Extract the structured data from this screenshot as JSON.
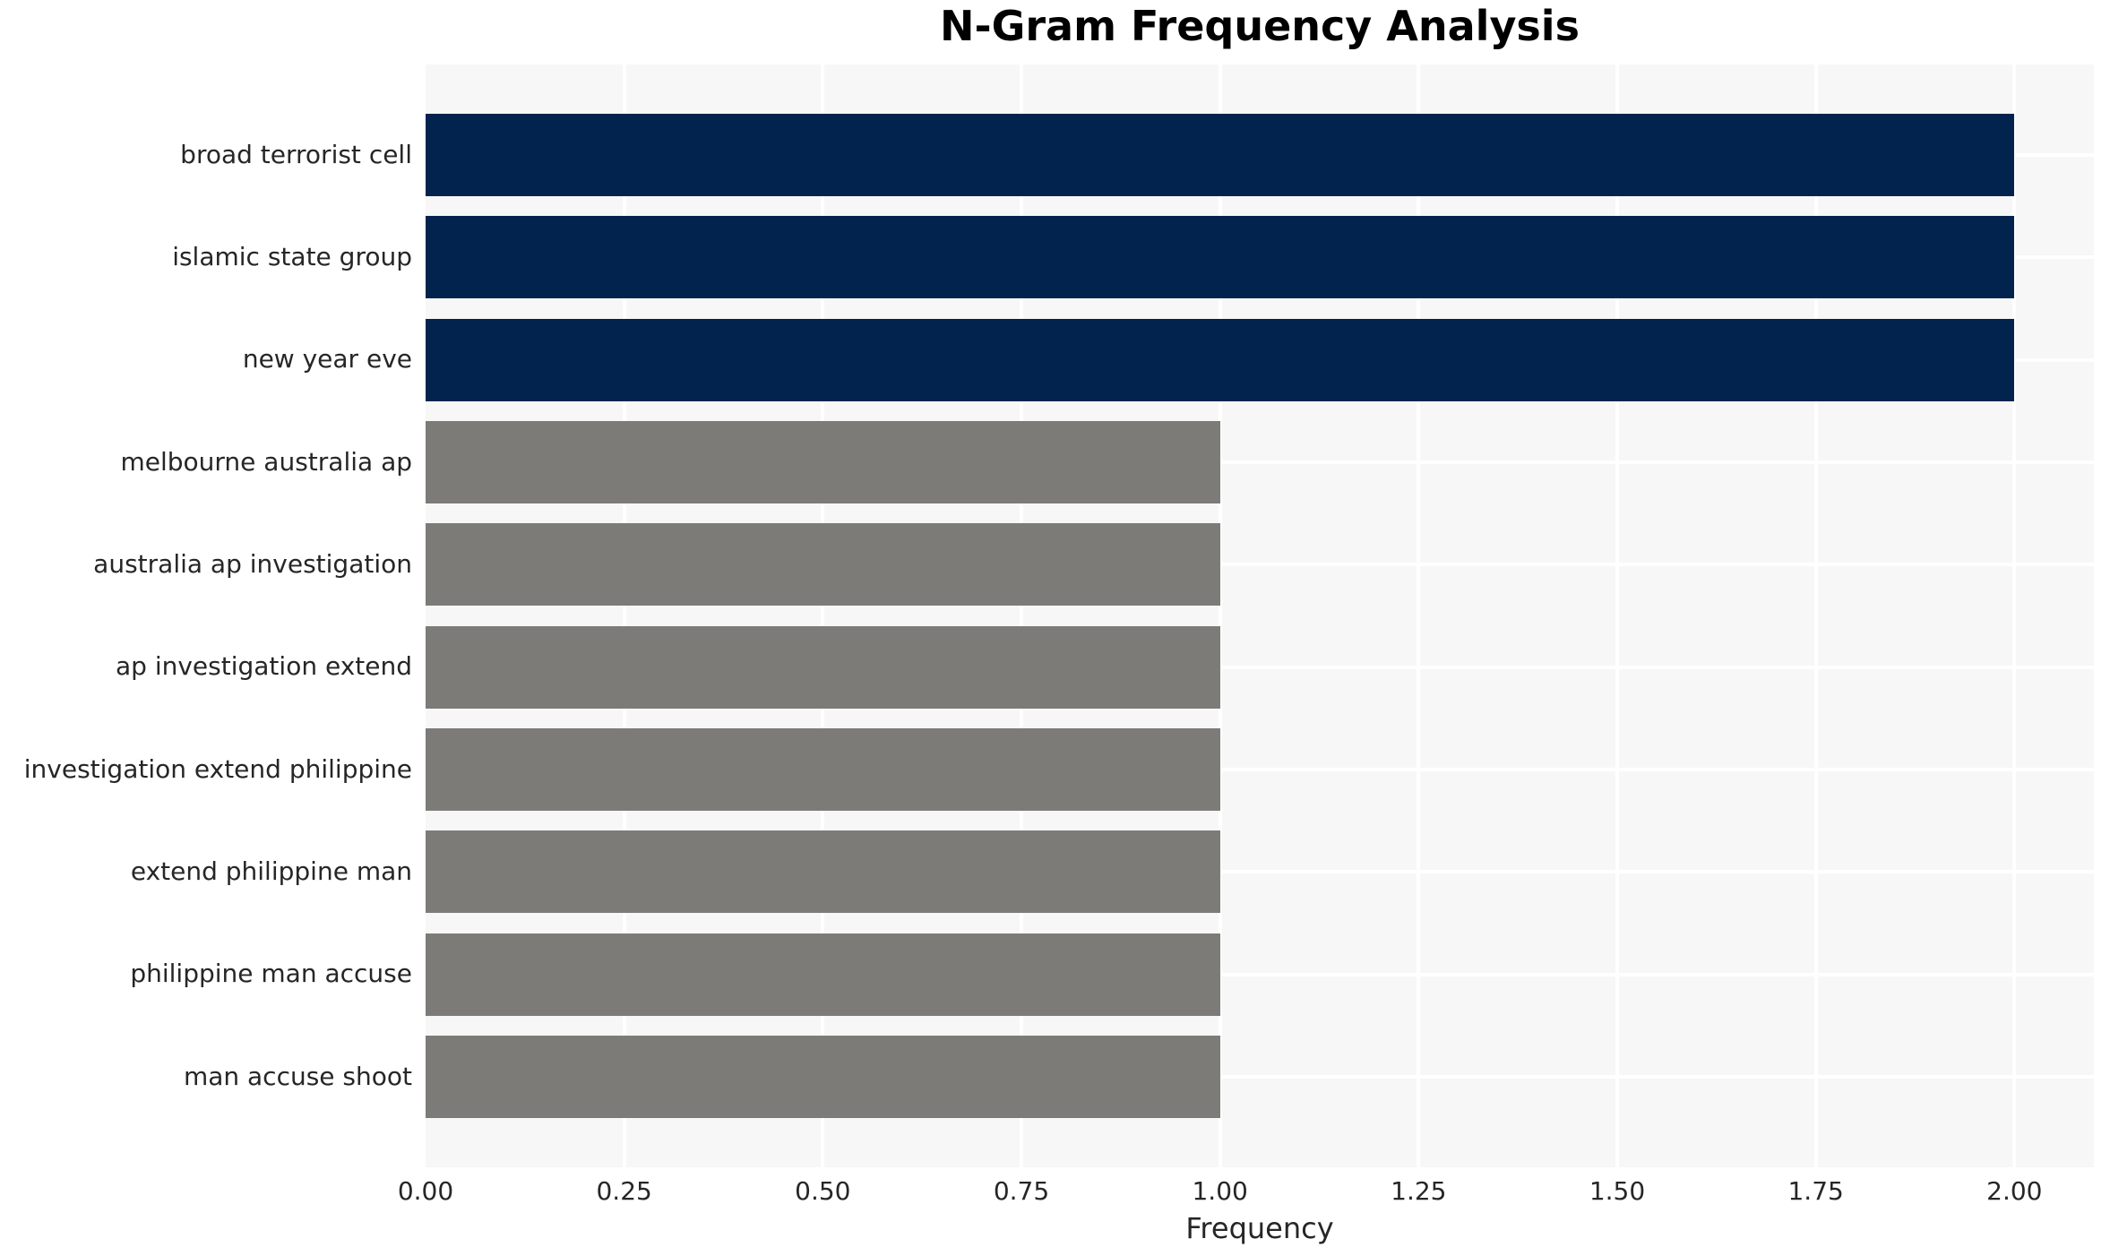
{
  "chart_data": {
    "type": "bar",
    "orientation": "horizontal",
    "title": "N-Gram Frequency Analysis",
    "xlabel": "Frequency",
    "categories": [
      "broad terrorist cell",
      "islamic state group",
      "new year eve",
      "melbourne australia ap",
      "australia ap investigation",
      "ap investigation extend",
      "investigation extend philippine",
      "extend philippine man",
      "philippine man accuse",
      "man accuse shoot"
    ],
    "values": [
      2,
      2,
      2,
      1,
      1,
      1,
      1,
      1,
      1,
      1
    ],
    "bar_colors": [
      "#02234d",
      "#02234d",
      "#02234d",
      "#7c7b77",
      "#7c7b77",
      "#7c7b77",
      "#7c7b77",
      "#7c7b77",
      "#7c7b77",
      "#7c7b77"
    ],
    "xlim": [
      0,
      2.1
    ],
    "xticks": {
      "values": [
        0,
        0.25,
        0.5,
        0.75,
        1.0,
        1.25,
        1.5,
        1.75,
        2.0
      ],
      "labels": [
        "0.00",
        "0.25",
        "0.50",
        "0.75",
        "1.00",
        "1.25",
        "1.50",
        "1.75",
        "2.00"
      ]
    },
    "grid": {
      "show": true,
      "color": "#ffffff"
    },
    "plot_background": "#f7f7f7",
    "page_background": "#ffffff",
    "legend": "none"
  }
}
